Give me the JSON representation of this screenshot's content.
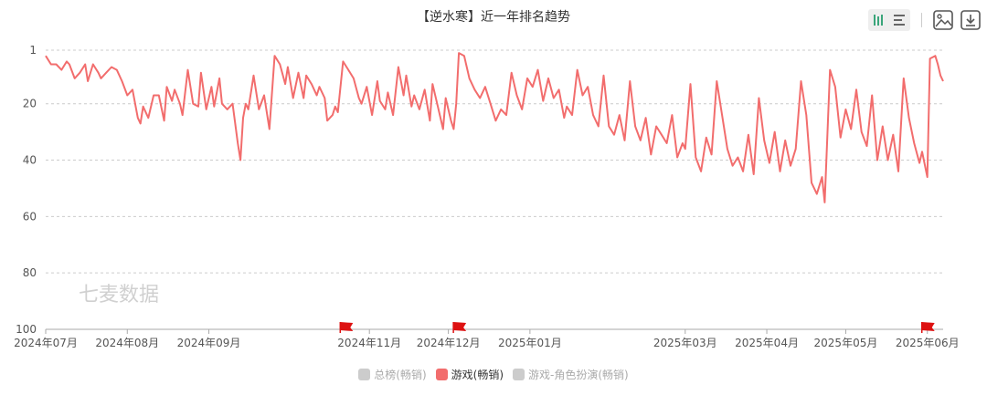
{
  "title": "【逆水寒】近一年排名趋势",
  "toolbar": {
    "icons": [
      "bar-chart-toggle-icon",
      "list-toggle-icon",
      "save-image-icon",
      "download-icon"
    ],
    "active_color": "#3aa57a",
    "icon_color": "#666666"
  },
  "watermark": "七麦数据",
  "legend": [
    {
      "name": "总榜(畅销)",
      "color": "#cccccc",
      "active": false
    },
    {
      "name": "游戏(畅销)",
      "color": "#f26d6d",
      "active": true
    },
    {
      "name": "游戏-角色扮演(畅销)",
      "color": "#cccccc",
      "active": false
    }
  ],
  "chart_data": {
    "type": "line",
    "title": "【逆水寒】近一年排名趋势",
    "xlabel": "",
    "ylabel": "",
    "y_inverted": true,
    "ylim": [
      1,
      100
    ],
    "y_ticks": [
      1,
      20,
      40,
      60,
      80,
      100
    ],
    "x_range": [
      "2024-07-01",
      "2025-06-07"
    ],
    "x_ticks": [
      {
        "date": "2024-07-01",
        "label": "2024年07月"
      },
      {
        "date": "2024-08-01",
        "label": "2024年08月"
      },
      {
        "date": "2024-09-01",
        "label": "2024年09月"
      },
      {
        "date": "2024-11-01",
        "label": "2024年11月"
      },
      {
        "date": "2024-12-01",
        "label": "2024年12月"
      },
      {
        "date": "2025-01-01",
        "label": "2025年01月"
      },
      {
        "date": "2025-03-01",
        "label": "2025年03月"
      },
      {
        "date": "2025-04-01",
        "label": "2025年04月"
      },
      {
        "date": "2025-05-01",
        "label": "2025年05月"
      },
      {
        "date": "2025-06-01",
        "label": "2025年06月"
      }
    ],
    "grid": true,
    "legend_position": "bottom",
    "marker_dates": [
      "2024-10-23",
      "2024-12-05",
      "2025-06-01"
    ],
    "marker_color": "#dd1111",
    "series": [
      {
        "name": "游戏(畅销)",
        "color": "#f26d6d",
        "points": [
          [
            "2024-07-01",
            3
          ],
          [
            "2024-07-03",
            6
          ],
          [
            "2024-07-05",
            6
          ],
          [
            "2024-07-07",
            8
          ],
          [
            "2024-07-09",
            5
          ],
          [
            "2024-07-10",
            6
          ],
          [
            "2024-07-12",
            11
          ],
          [
            "2024-07-14",
            9
          ],
          [
            "2024-07-16",
            6
          ],
          [
            "2024-07-17",
            12
          ],
          [
            "2024-07-19",
            6
          ],
          [
            "2024-07-21",
            9
          ],
          [
            "2024-07-22",
            11
          ],
          [
            "2024-07-24",
            9
          ],
          [
            "2024-07-26",
            7
          ],
          [
            "2024-07-28",
            8
          ],
          [
            "2024-07-30",
            12
          ],
          [
            "2024-08-01",
            17
          ],
          [
            "2024-08-03",
            15
          ],
          [
            "2024-08-05",
            25
          ],
          [
            "2024-08-06",
            27
          ],
          [
            "2024-08-07",
            21
          ],
          [
            "2024-08-09",
            25
          ],
          [
            "2024-08-11",
            17
          ],
          [
            "2024-08-13",
            17
          ],
          [
            "2024-08-15",
            26
          ],
          [
            "2024-08-16",
            14
          ],
          [
            "2024-08-18",
            19
          ],
          [
            "2024-08-19",
            15
          ],
          [
            "2024-08-21",
            20
          ],
          [
            "2024-08-22",
            24
          ],
          [
            "2024-08-24",
            8
          ],
          [
            "2024-08-26",
            20
          ],
          [
            "2024-08-28",
            21
          ],
          [
            "2024-08-29",
            9
          ],
          [
            "2024-08-31",
            22
          ],
          [
            "2024-09-02",
            14
          ],
          [
            "2024-09-03",
            21
          ],
          [
            "2024-09-05",
            11
          ],
          [
            "2024-09-06",
            20
          ],
          [
            "2024-09-08",
            22
          ],
          [
            "2024-09-10",
            20
          ],
          [
            "2024-09-12",
            34
          ],
          [
            "2024-09-13",
            40
          ],
          [
            "2024-09-14",
            25
          ],
          [
            "2024-09-15",
            20
          ],
          [
            "2024-09-16",
            22
          ],
          [
            "2024-09-18",
            10
          ],
          [
            "2024-09-20",
            22
          ],
          [
            "2024-09-22",
            17
          ],
          [
            "2024-09-24",
            29
          ],
          [
            "2024-09-26",
            3
          ],
          [
            "2024-09-28",
            6
          ],
          [
            "2024-09-30",
            13
          ],
          [
            "2024-10-01",
            7
          ],
          [
            "2024-10-03",
            18
          ],
          [
            "2024-10-05",
            9
          ],
          [
            "2024-10-07",
            18
          ],
          [
            "2024-10-08",
            10
          ],
          [
            "2024-10-10",
            13
          ],
          [
            "2024-10-12",
            17
          ],
          [
            "2024-10-13",
            14
          ],
          [
            "2024-10-15",
            18
          ],
          [
            "2024-10-16",
            26
          ],
          [
            "2024-10-18",
            24
          ],
          [
            "2024-10-19",
            21
          ],
          [
            "2024-10-20",
            23
          ],
          [
            "2024-10-22",
            5
          ],
          [
            "2024-10-24",
            8
          ],
          [
            "2024-10-26",
            11
          ],
          [
            "2024-10-28",
            18
          ],
          [
            "2024-10-29",
            20
          ],
          [
            "2024-10-31",
            14
          ],
          [
            "2024-11-02",
            24
          ],
          [
            "2024-11-04",
            12
          ],
          [
            "2024-11-05",
            19
          ],
          [
            "2024-11-07",
            22
          ],
          [
            "2024-11-08",
            16
          ],
          [
            "2024-11-10",
            24
          ],
          [
            "2024-11-12",
            7
          ],
          [
            "2024-11-14",
            17
          ],
          [
            "2024-11-15",
            10
          ],
          [
            "2024-11-17",
            21
          ],
          [
            "2024-11-18",
            17
          ],
          [
            "2024-11-20",
            22
          ],
          [
            "2024-11-22",
            15
          ],
          [
            "2024-11-24",
            26
          ],
          [
            "2024-11-25",
            13
          ],
          [
            "2024-11-27",
            21
          ],
          [
            "2024-11-29",
            29
          ],
          [
            "2024-11-30",
            18
          ],
          [
            "2024-12-02",
            26
          ],
          [
            "2024-12-03",
            29
          ],
          [
            "2024-12-04",
            20
          ],
          [
            "2024-12-05",
            2
          ],
          [
            "2024-12-07",
            3
          ],
          [
            "2024-12-09",
            11
          ],
          [
            "2024-12-11",
            15
          ],
          [
            "2024-12-13",
            18
          ],
          [
            "2024-12-15",
            14
          ],
          [
            "2024-12-17",
            20
          ],
          [
            "2024-12-19",
            26
          ],
          [
            "2024-12-21",
            22
          ],
          [
            "2024-12-23",
            24
          ],
          [
            "2024-12-25",
            9
          ],
          [
            "2024-12-27",
            17
          ],
          [
            "2024-12-29",
            22
          ],
          [
            "2024-12-31",
            11
          ],
          [
            "2025-01-02",
            14
          ],
          [
            "2025-01-04",
            8
          ],
          [
            "2025-01-06",
            19
          ],
          [
            "2025-01-08",
            11
          ],
          [
            "2025-01-10",
            18
          ],
          [
            "2025-01-12",
            15
          ],
          [
            "2025-01-14",
            25
          ],
          [
            "2025-01-15",
            21
          ],
          [
            "2025-01-17",
            24
          ],
          [
            "2025-01-19",
            8
          ],
          [
            "2025-01-21",
            17
          ],
          [
            "2025-01-23",
            14
          ],
          [
            "2025-01-25",
            24
          ],
          [
            "2025-01-27",
            28
          ],
          [
            "2025-01-29",
            10
          ],
          [
            "2025-01-31",
            28
          ],
          [
            "2025-02-02",
            31
          ],
          [
            "2025-02-04",
            24
          ],
          [
            "2025-02-06",
            33
          ],
          [
            "2025-02-08",
            12
          ],
          [
            "2025-02-10",
            28
          ],
          [
            "2025-02-12",
            33
          ],
          [
            "2025-02-14",
            25
          ],
          [
            "2025-02-16",
            38
          ],
          [
            "2025-02-18",
            28
          ],
          [
            "2025-02-20",
            31
          ],
          [
            "2025-02-22",
            34
          ],
          [
            "2025-02-24",
            24
          ],
          [
            "2025-02-26",
            39
          ],
          [
            "2025-02-28",
            34
          ],
          [
            "2025-03-01",
            36
          ],
          [
            "2025-03-03",
            13
          ],
          [
            "2025-03-05",
            39
          ],
          [
            "2025-03-07",
            44
          ],
          [
            "2025-03-09",
            32
          ],
          [
            "2025-03-11",
            38
          ],
          [
            "2025-03-13",
            12
          ],
          [
            "2025-03-15",
            24
          ],
          [
            "2025-03-17",
            36
          ],
          [
            "2025-03-19",
            42
          ],
          [
            "2025-03-21",
            39
          ],
          [
            "2025-03-23",
            44
          ],
          [
            "2025-03-25",
            31
          ],
          [
            "2025-03-27",
            45
          ],
          [
            "2025-03-29",
            18
          ],
          [
            "2025-03-31",
            33
          ],
          [
            "2025-04-02",
            41
          ],
          [
            "2025-04-04",
            30
          ],
          [
            "2025-04-06",
            44
          ],
          [
            "2025-04-08",
            33
          ],
          [
            "2025-04-10",
            42
          ],
          [
            "2025-04-12",
            36
          ],
          [
            "2025-04-14",
            12
          ],
          [
            "2025-04-16",
            24
          ],
          [
            "2025-04-18",
            48
          ],
          [
            "2025-04-20",
            52
          ],
          [
            "2025-04-22",
            46
          ],
          [
            "2025-04-23",
            55
          ],
          [
            "2025-04-25",
            8
          ],
          [
            "2025-04-27",
            14
          ],
          [
            "2025-04-29",
            32
          ],
          [
            "2025-05-01",
            22
          ],
          [
            "2025-05-03",
            29
          ],
          [
            "2025-05-05",
            15
          ],
          [
            "2025-05-07",
            30
          ],
          [
            "2025-05-09",
            35
          ],
          [
            "2025-05-11",
            17
          ],
          [
            "2025-05-13",
            40
          ],
          [
            "2025-05-15",
            28
          ],
          [
            "2025-05-17",
            40
          ],
          [
            "2025-05-19",
            31
          ],
          [
            "2025-05-21",
            44
          ],
          [
            "2025-05-23",
            11
          ],
          [
            "2025-05-25",
            25
          ],
          [
            "2025-05-27",
            34
          ],
          [
            "2025-05-29",
            41
          ],
          [
            "2025-05-30",
            37
          ],
          [
            "2025-06-01",
            46
          ],
          [
            "2025-06-02",
            4
          ],
          [
            "2025-06-04",
            3
          ],
          [
            "2025-06-05",
            6
          ],
          [
            "2025-06-06",
            10
          ],
          [
            "2025-06-07",
            12
          ]
        ]
      }
    ]
  }
}
